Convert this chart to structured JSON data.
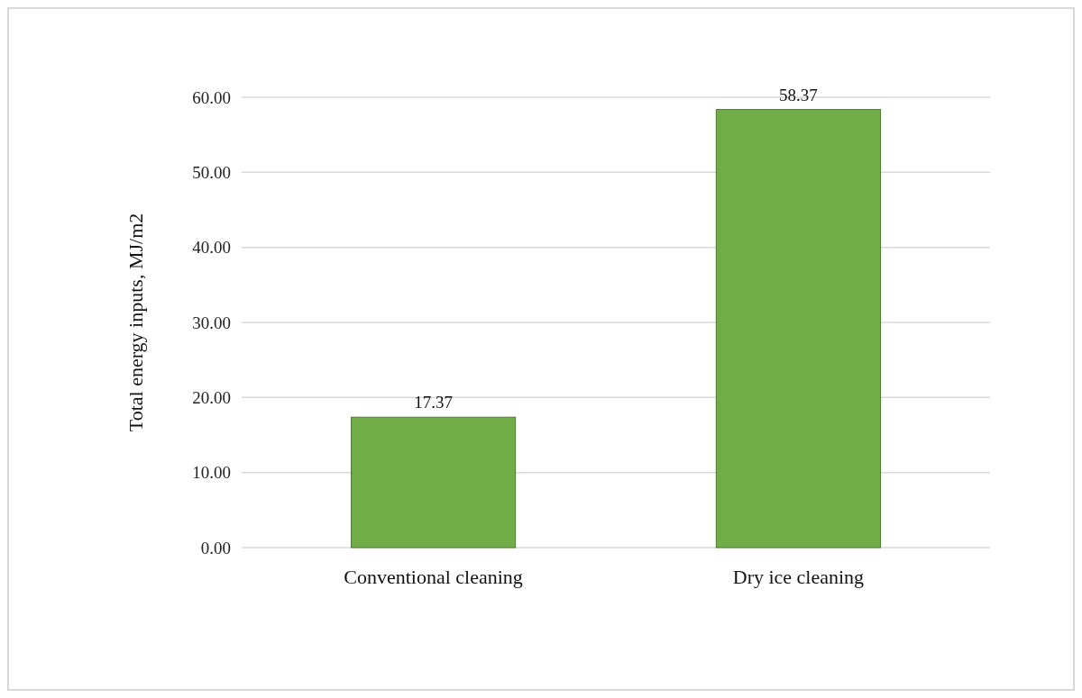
{
  "chart_data": {
    "type": "bar",
    "ylabel": "Total energy inputs, MJ/m2",
    "categories": [
      "Conventional cleaning",
      "Dry ice cleaning"
    ],
    "values": [
      17.37,
      58.37
    ],
    "color": "#70ad47",
    "ylim": [
      0,
      60
    ],
    "yticks": [
      {
        "value": 0,
        "label": "0.00"
      },
      {
        "value": 10,
        "label": "10.00"
      },
      {
        "value": 20,
        "label": "20.00"
      },
      {
        "value": 30,
        "label": "30.00"
      },
      {
        "value": 40,
        "label": "40.00"
      },
      {
        "value": 50,
        "label": "50.00"
      },
      {
        "value": 60,
        "label": "60.00"
      }
    ],
    "grid": "y",
    "data_labels": true
  }
}
